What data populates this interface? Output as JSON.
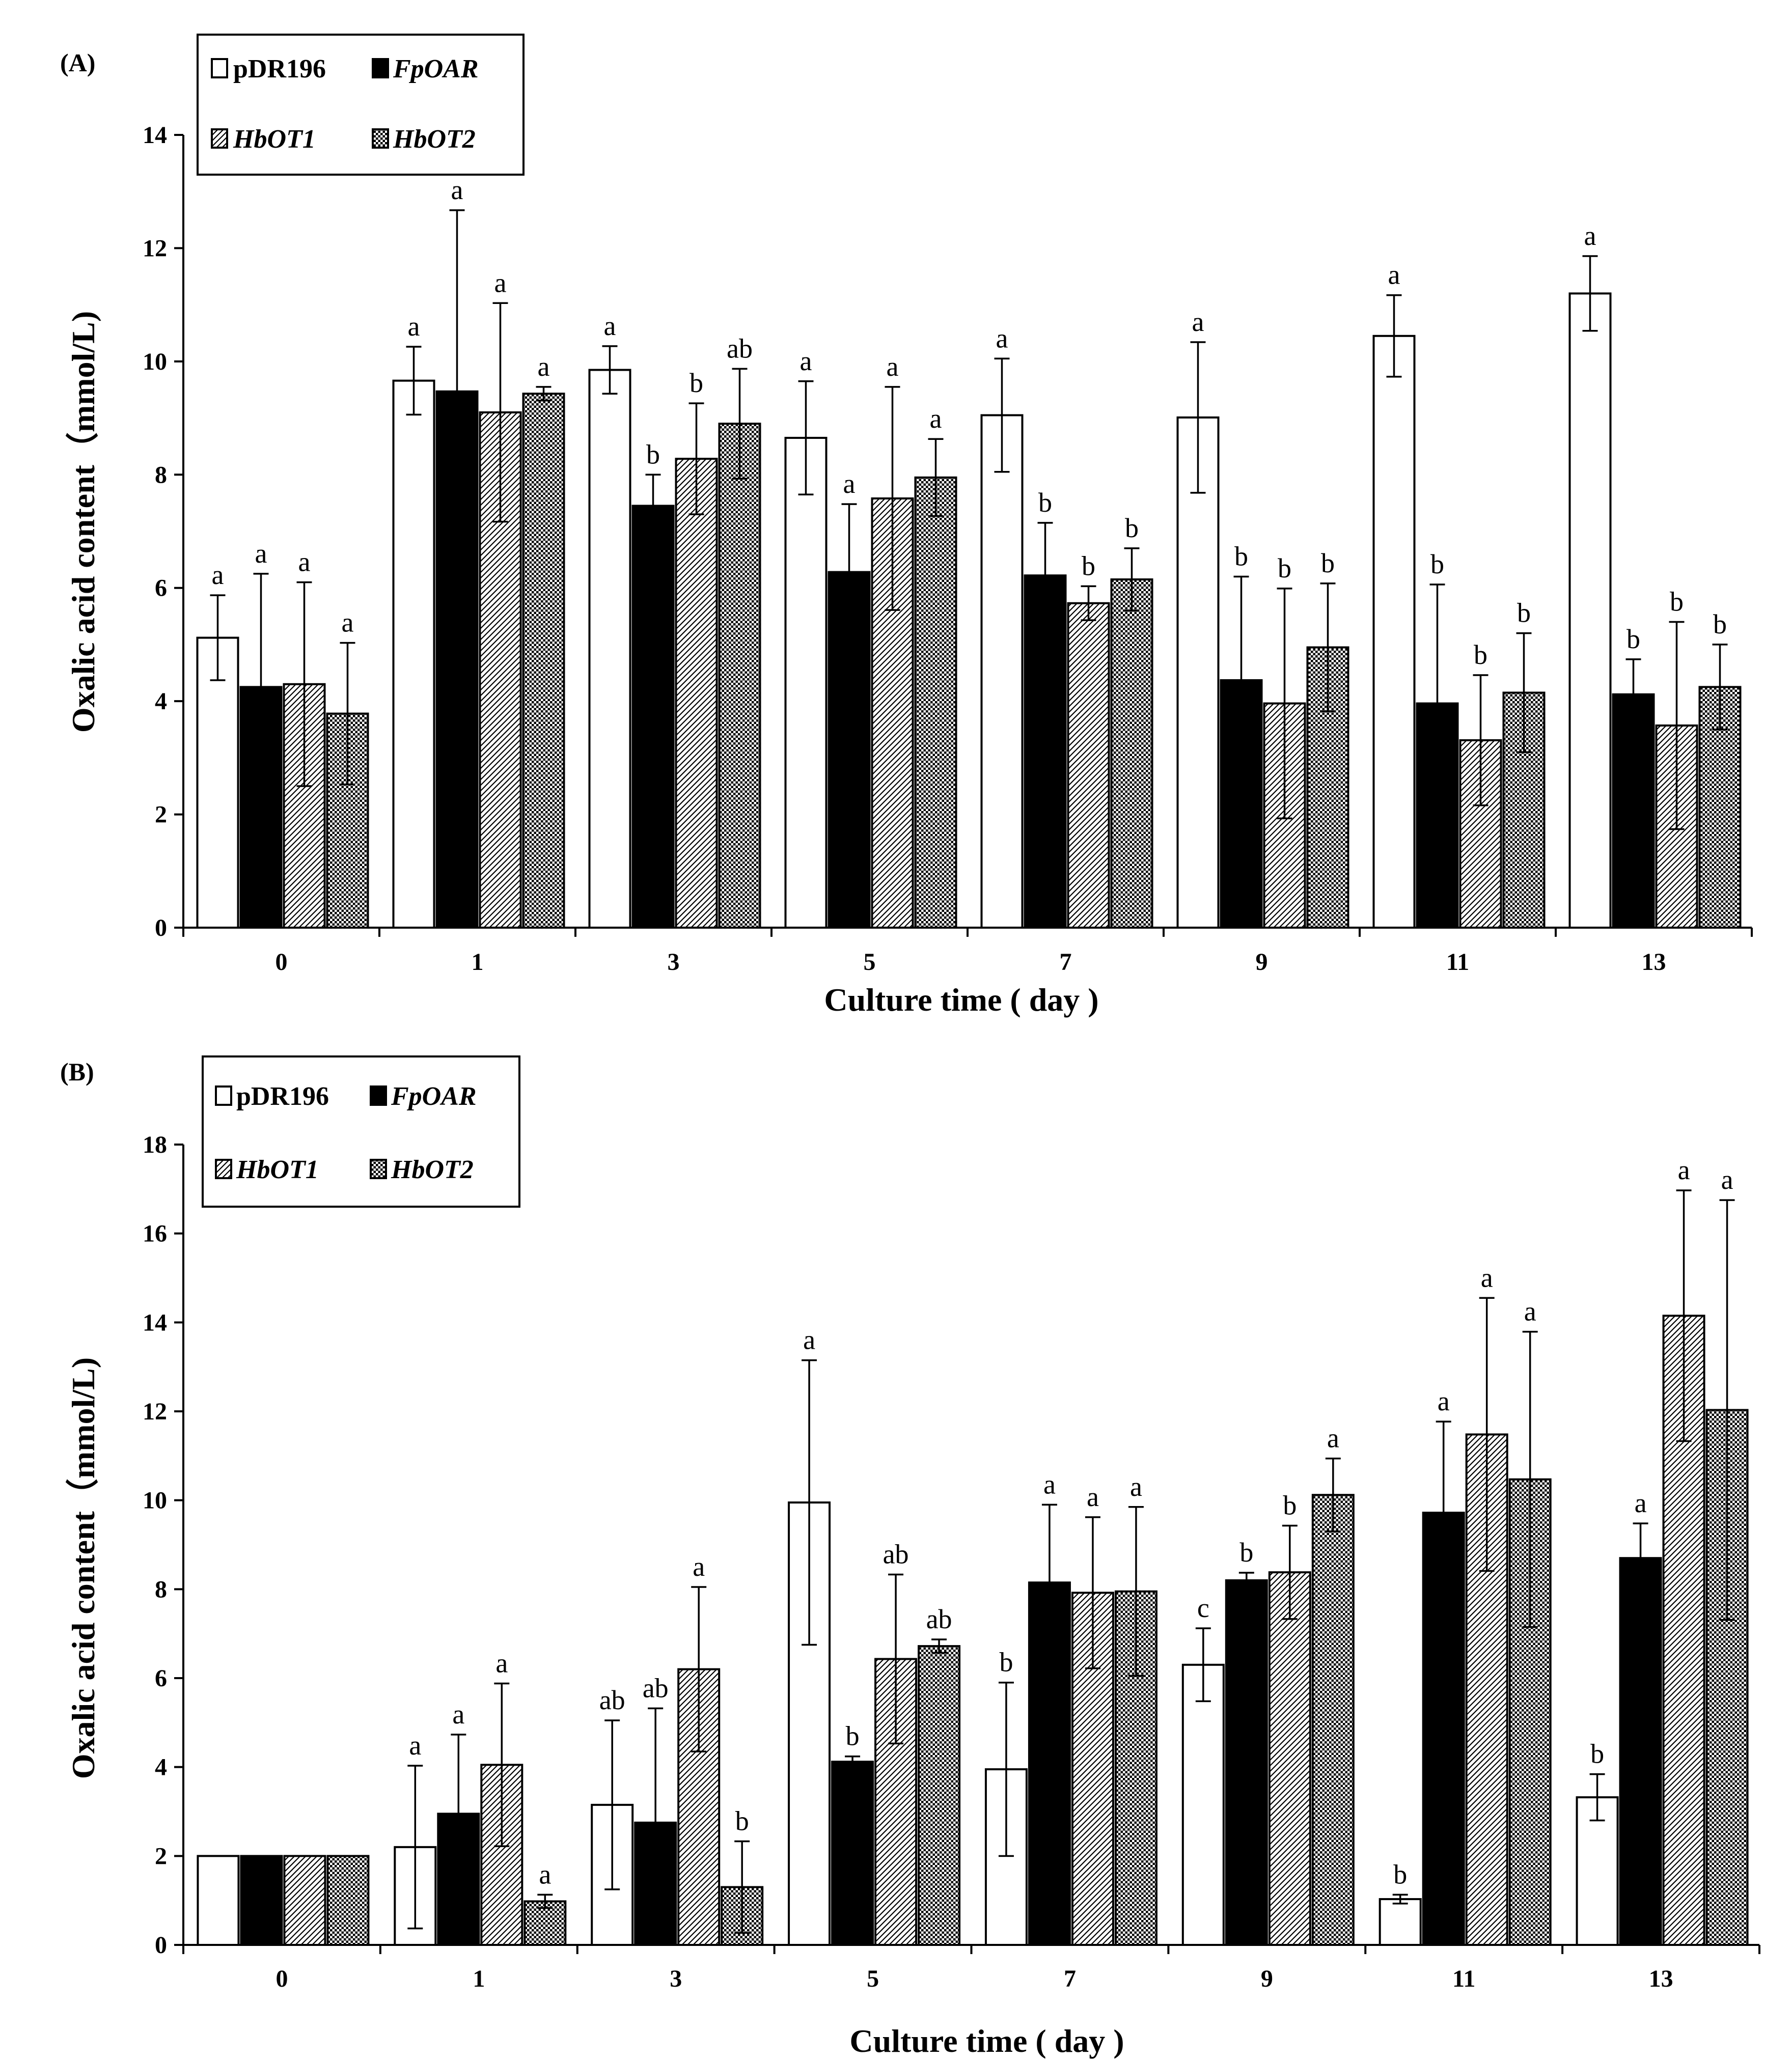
{
  "chart_data": [
    {
      "type": "bar",
      "panel_label": "(A)",
      "ylabel": "Oxalic acid content（mmol/L)",
      "xlabel": "Culture time ( day )",
      "ylim": [
        0,
        14
      ],
      "yticks": [
        "0",
        "2",
        "4",
        "6",
        "8",
        "10",
        "12",
        "14"
      ],
      "categories": [
        "0",
        "1",
        "3",
        "5",
        "7",
        "9",
        "11",
        "13"
      ],
      "legend": [
        "pDR196",
        "FpOAR",
        "HbOT1",
        "HbOT2"
      ],
      "series": [
        {
          "name": "pDR196",
          "values": [
            5.12,
            9.66,
            9.85,
            8.65,
            9.05,
            9.01,
            10.45,
            11.2
          ],
          "errors": [
            0.75,
            0.6,
            0.42,
            1.0,
            1.0,
            1.33,
            0.72,
            0.66
          ],
          "labels": [
            "a",
            "a",
            "a",
            "a",
            "a",
            "a",
            "a",
            "a"
          ]
        },
        {
          "name": "FpOAR",
          "values": [
            4.25,
            9.47,
            7.45,
            6.28,
            6.22,
            4.37,
            3.96,
            4.12
          ],
          "errors": [
            2.0,
            3.2,
            0.55,
            1.2,
            0.93,
            1.83,
            2.1,
            0.62
          ],
          "labels": [
            "a",
            "a",
            "b",
            "a",
            "b",
            "b",
            "b",
            "b"
          ]
        },
        {
          "name": "HbOT1",
          "values": [
            4.3,
            9.1,
            8.28,
            7.58,
            5.73,
            3.96,
            3.31,
            3.57
          ],
          "errors": [
            1.8,
            1.93,
            0.98,
            1.97,
            0.3,
            2.03,
            1.15,
            1.83
          ],
          "labels": [
            "a",
            "a",
            "b",
            "a",
            "b",
            "b",
            "b",
            "b"
          ]
        },
        {
          "name": "HbOT2",
          "values": [
            3.78,
            9.43,
            8.9,
            7.95,
            6.15,
            4.95,
            4.15,
            4.25
          ],
          "errors": [
            1.25,
            0.12,
            0.97,
            0.68,
            0.55,
            1.13,
            1.05,
            0.75
          ],
          "labels": [
            "a",
            "a",
            "ab",
            "a",
            "b",
            "b",
            "b",
            "b"
          ]
        }
      ]
    },
    {
      "type": "bar",
      "panel_label": "(B)",
      "ylabel": "Oxalic acid content（mmol/L)",
      "xlabel": "Culture time ( day )",
      "ylim": [
        0,
        18
      ],
      "yticks": [
        "0",
        "2",
        "4",
        "6",
        "8",
        "10",
        "12",
        "14",
        "16",
        "18"
      ],
      "categories": [
        "0",
        "1",
        "3",
        "5",
        "7",
        "9",
        "11",
        "13"
      ],
      "legend": [
        "pDR196",
        "FpOAR",
        "HbOT1",
        "HbOT2"
      ],
      "series": [
        {
          "name": "pDR196",
          "values": [
            2.0,
            2.2,
            3.15,
            9.95,
            3.95,
            6.3,
            1.03,
            3.32
          ],
          "errors": [
            0,
            1.83,
            1.9,
            3.2,
            1.95,
            0.82,
            0.1,
            0.52
          ],
          "labels": [
            "",
            "a",
            "ab",
            "a",
            "b",
            "c",
            "b",
            "b"
          ]
        },
        {
          "name": "FpOAR",
          "values": [
            2.0,
            2.95,
            2.75,
            4.12,
            8.15,
            8.2,
            9.72,
            8.7
          ],
          "errors": [
            0,
            1.78,
            2.57,
            0.12,
            1.75,
            0.17,
            2.05,
            0.78
          ],
          "labels": [
            "",
            "a",
            "ab",
            "b",
            "a",
            "b",
            "a",
            "a"
          ]
        },
        {
          "name": "HbOT1",
          "values": [
            2.0,
            4.05,
            6.2,
            6.43,
            7.92,
            8.38,
            11.48,
            14.15
          ],
          "errors": [
            0,
            1.83,
            1.85,
            1.9,
            1.7,
            1.05,
            3.07,
            2.82
          ],
          "labels": [
            "",
            "a",
            "a",
            "ab",
            "a",
            "b",
            "a",
            "a"
          ]
        },
        {
          "name": "HbOT2",
          "values": [
            2.0,
            0.98,
            1.3,
            6.72,
            7.95,
            10.12,
            10.47,
            12.03
          ],
          "errors": [
            0,
            0.15,
            1.03,
            0.15,
            1.9,
            0.82,
            3.32,
            4.72
          ],
          "labels": [
            "",
            "a",
            "b",
            "ab",
            "a",
            "a",
            "a",
            "a"
          ]
        }
      ]
    }
  ]
}
